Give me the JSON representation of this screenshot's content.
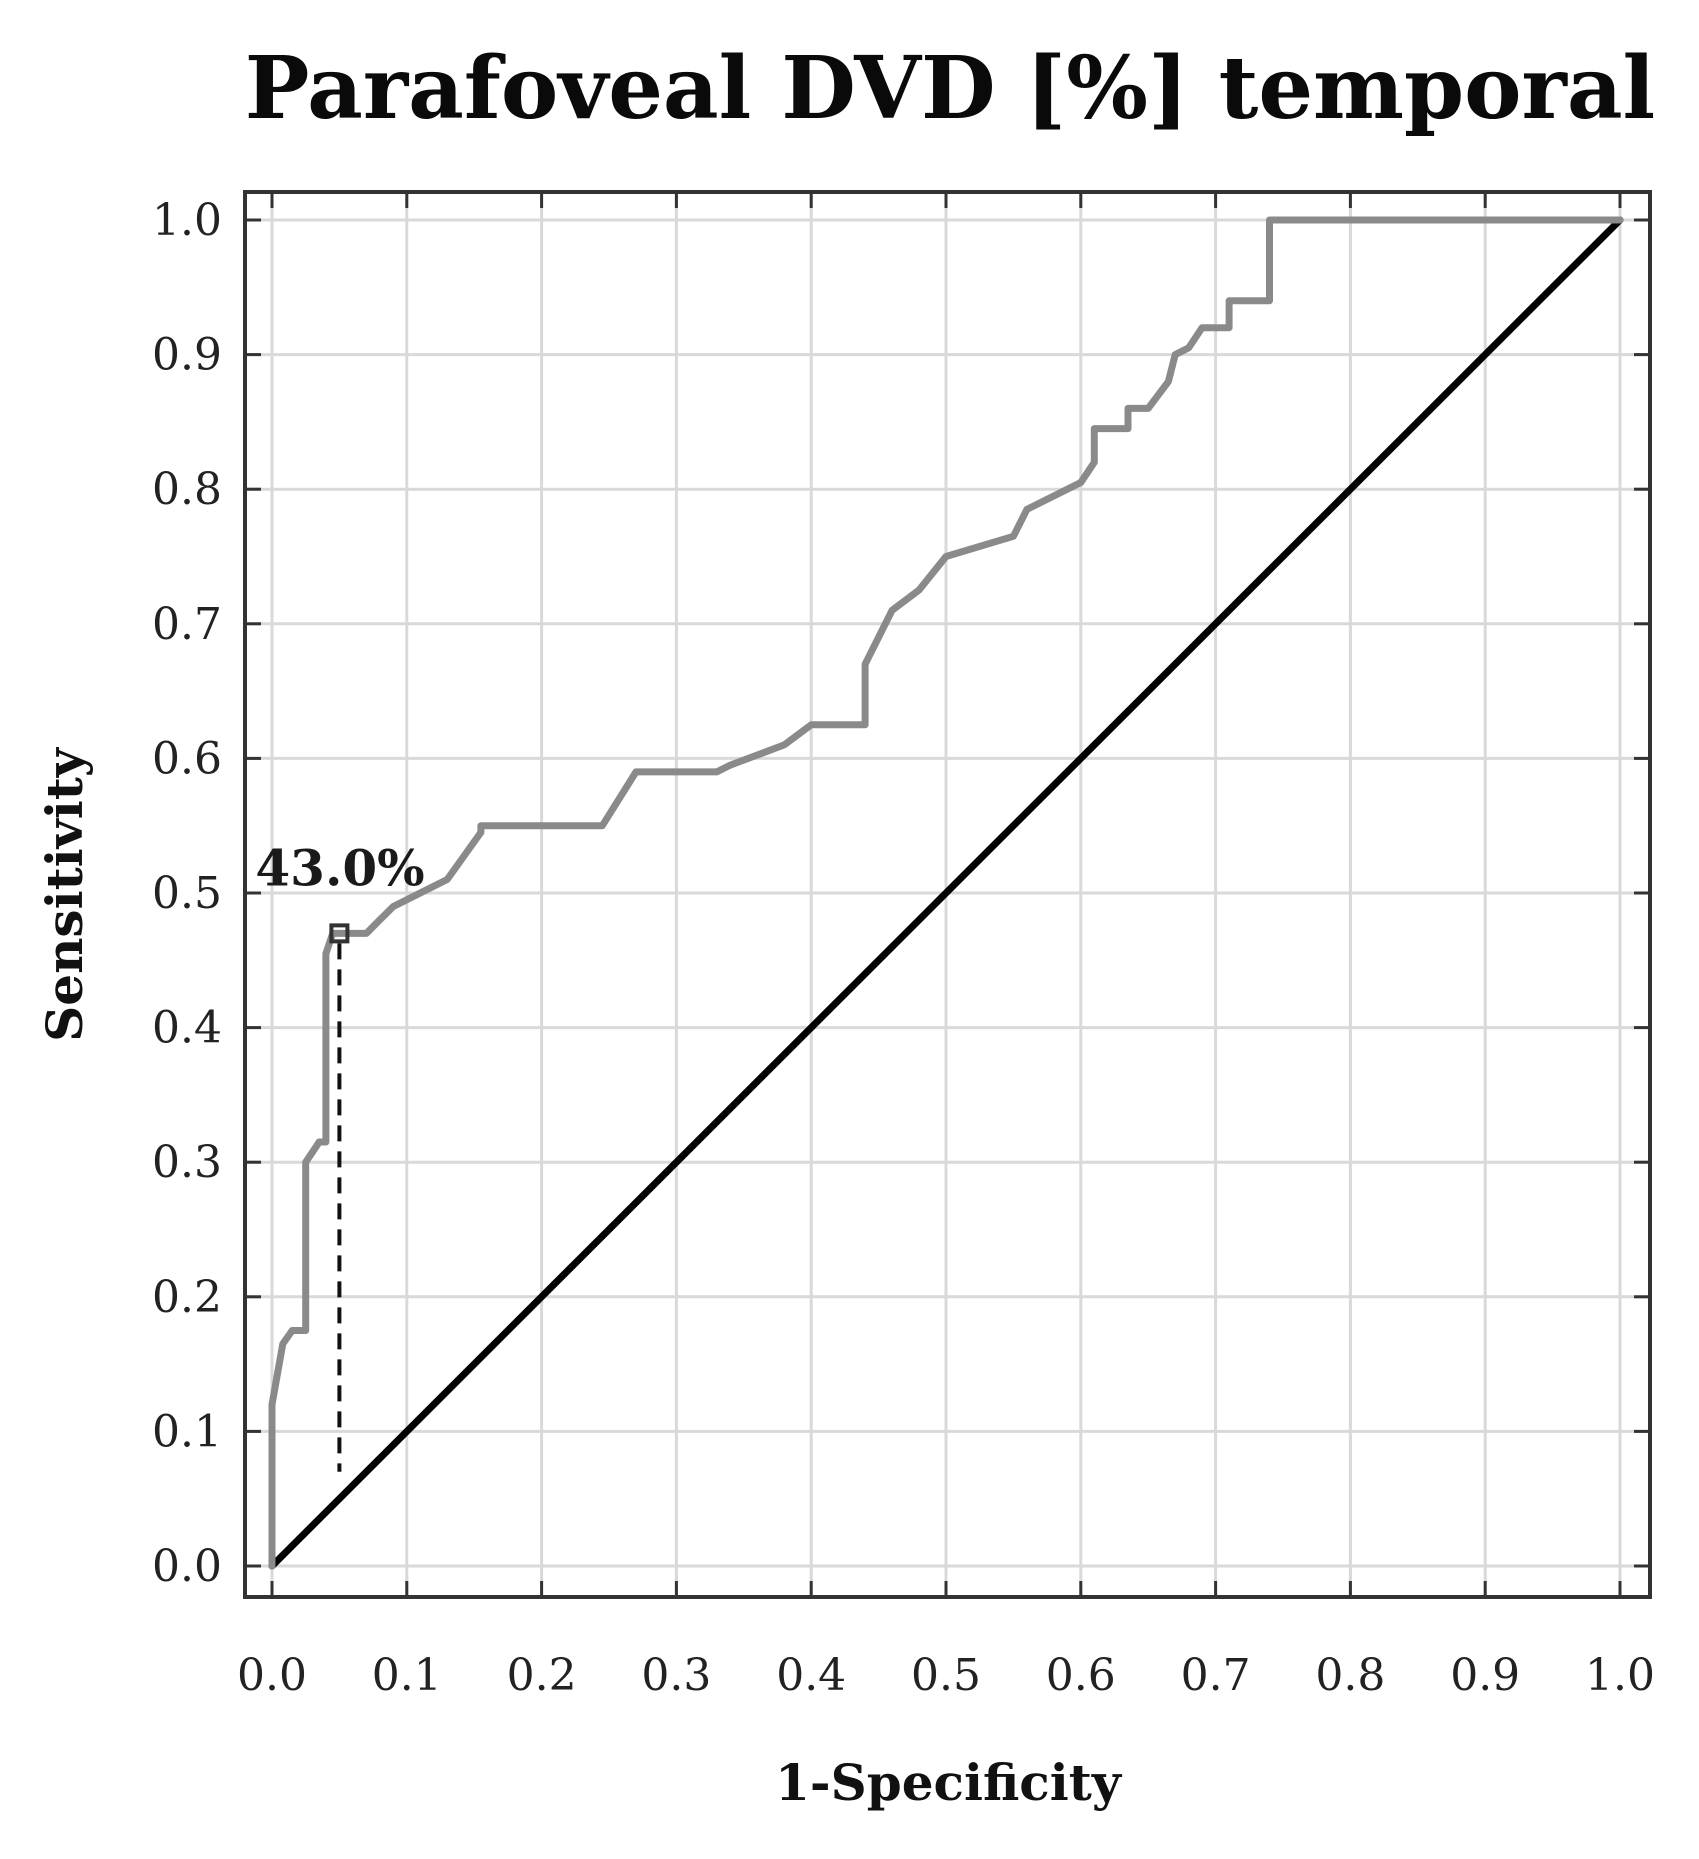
{
  "chart_data": {
    "type": "line",
    "title": "Parafoveal DVD [%] temporal",
    "xlabel": "1-Specificity",
    "ylabel": "Sensitivity",
    "xlim": [
      0.0,
      1.0
    ],
    "ylim": [
      0.0,
      1.0
    ],
    "xticks": [
      "0.0",
      "0.1",
      "0.2",
      "0.3",
      "0.4",
      "0.5",
      "0.6",
      "0.7",
      "0.8",
      "0.9",
      "1.0"
    ],
    "yticks": [
      "0.0",
      "0.1",
      "0.2",
      "0.3",
      "0.4",
      "0.5",
      "0.6",
      "0.7",
      "0.8",
      "0.9",
      "1.0"
    ],
    "grid": true,
    "colors": {
      "roc": "#8a8a8a",
      "reference": "#000000",
      "grid": "#d9d9d9",
      "frame": "#333333"
    },
    "series": [
      {
        "kind": "roc-curve",
        "x": [
          0.0,
          0.0,
          0.008,
          0.015,
          0.025,
          0.025,
          0.035,
          0.04,
          0.04,
          0.045,
          0.055,
          0.07,
          0.08,
          0.09,
          0.1,
          0.13,
          0.155,
          0.155,
          0.245,
          0.27,
          0.33,
          0.34,
          0.38,
          0.4,
          0.44,
          0.44,
          0.46,
          0.48,
          0.5,
          0.55,
          0.56,
          0.6,
          0.61,
          0.61,
          0.635,
          0.635,
          0.65,
          0.665,
          0.67,
          0.68,
          0.69,
          0.71,
          0.71,
          0.73,
          0.74,
          0.74,
          1.0
        ],
        "y": [
          0.0,
          0.12,
          0.165,
          0.175,
          0.175,
          0.3,
          0.315,
          0.315,
          0.455,
          0.47,
          0.47,
          0.47,
          0.48,
          0.49,
          0.495,
          0.51,
          0.545,
          0.55,
          0.55,
          0.59,
          0.59,
          0.595,
          0.61,
          0.625,
          0.625,
          0.67,
          0.71,
          0.725,
          0.75,
          0.765,
          0.785,
          0.805,
          0.82,
          0.845,
          0.845,
          0.86,
          0.86,
          0.88,
          0.9,
          0.905,
          0.92,
          0.92,
          0.94,
          0.94,
          0.94,
          1.0,
          1.0
        ]
      },
      {
        "kind": "reference-line",
        "x": [
          0.0,
          1.0
        ],
        "y": [
          0.0,
          1.0
        ]
      }
    ],
    "cutoff": {
      "label": "43.0%",
      "x": 0.05,
      "y": 0.47,
      "y_drop": 0.07
    }
  }
}
